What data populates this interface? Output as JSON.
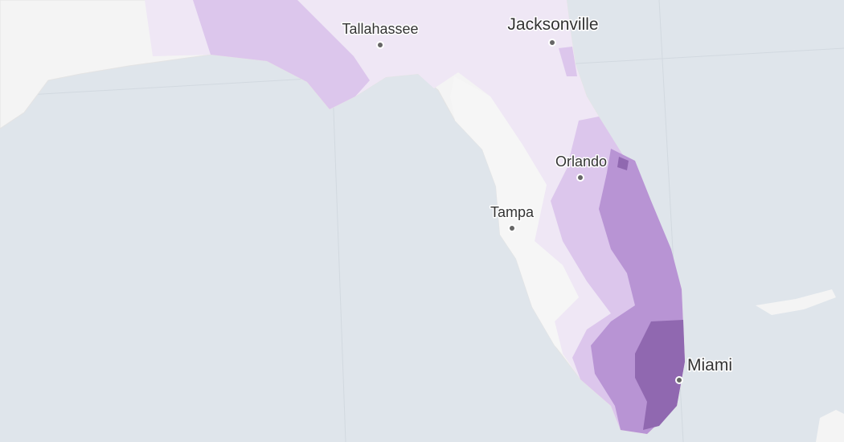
{
  "map": {
    "cities": [
      {
        "name": "Tallahassee"
      },
      {
        "name": "Jacksonville"
      },
      {
        "name": "Orlando"
      },
      {
        "name": "Tampa"
      },
      {
        "name": "Miami"
      }
    ]
  }
}
